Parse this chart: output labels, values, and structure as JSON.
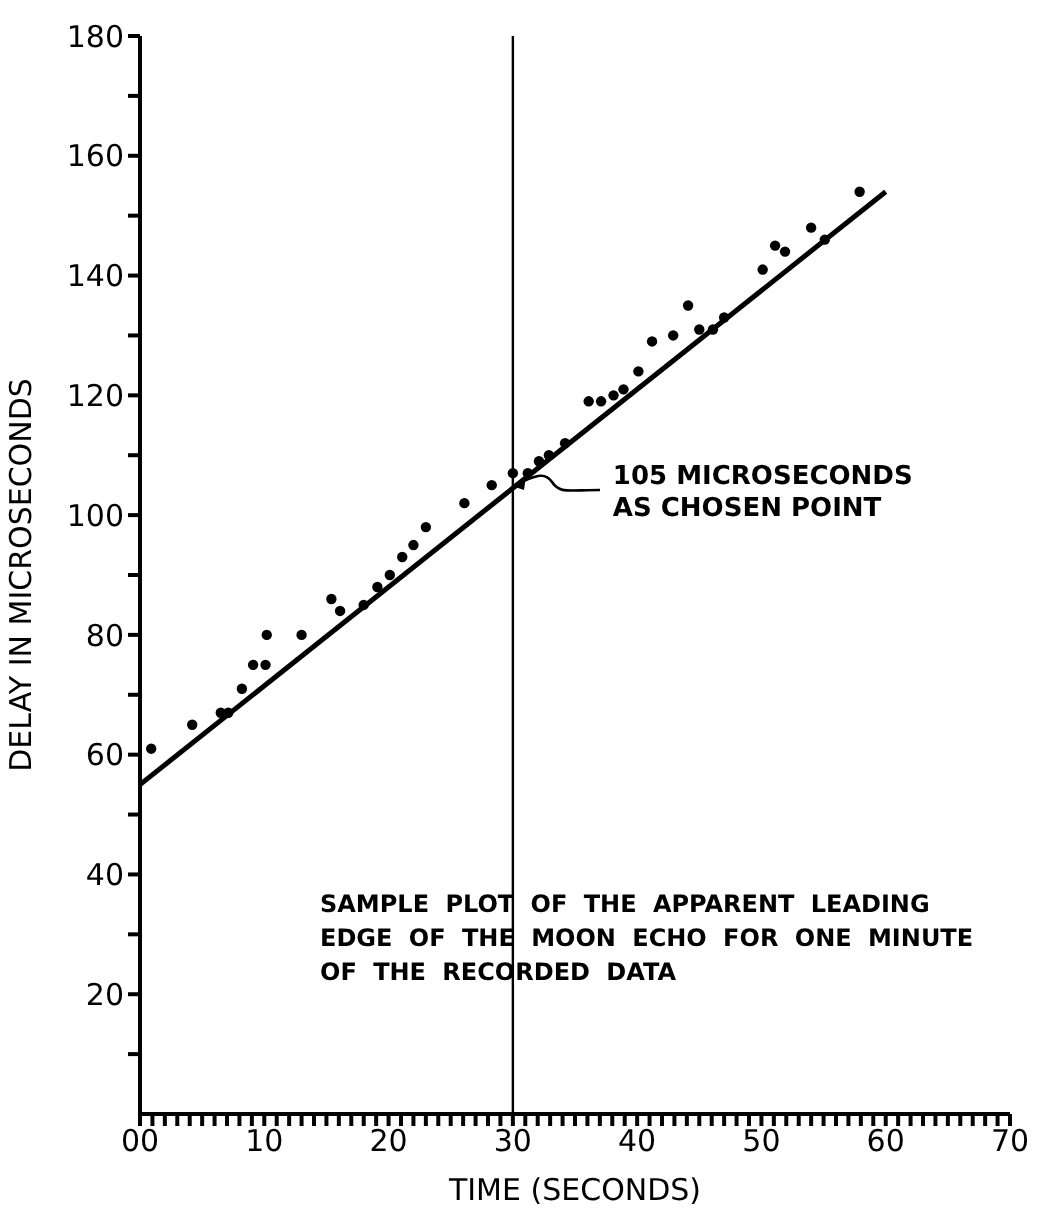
{
  "chart_data": {
    "type": "scatter",
    "xlabel": "TIME (SECONDS)",
    "ylabel": "DELAY IN MICROSECONDS",
    "xlim": [
      0,
      70
    ],
    "ylim": [
      0,
      180
    ],
    "xticks": [
      {
        "value": 0,
        "label": "00"
      },
      10,
      20,
      30,
      40,
      50,
      60,
      70,
      {
        "value": 1,
        "label": null
      },
      {
        "value": 2,
        "label": null
      },
      {
        "value": 3,
        "label": null
      },
      {
        "value": 4,
        "label": null
      },
      {
        "value": 5,
        "label": null
      },
      {
        "value": 6,
        "label": null
      },
      {
        "value": 7,
        "label": null
      },
      {
        "value": 8,
        "label": null
      },
      {
        "value": 9,
        "label": null
      },
      {
        "value": 11,
        "label": null
      },
      {
        "value": 12,
        "label": null
      },
      {
        "value": 13,
        "label": null
      },
      {
        "value": 14,
        "label": null
      },
      {
        "value": 15,
        "label": null
      },
      {
        "value": 16,
        "label": null
      },
      {
        "value": 17,
        "label": null
      },
      {
        "value": 18,
        "label": null
      },
      {
        "value": 19,
        "label": null
      },
      {
        "value": 21,
        "label": null
      },
      {
        "value": 22,
        "label": null
      },
      {
        "value": 23,
        "label": null
      },
      {
        "value": 24,
        "label": null
      },
      {
        "value": 25,
        "label": null
      },
      {
        "value": 26,
        "label": null
      },
      {
        "value": 27,
        "label": null
      },
      {
        "value": 28,
        "label": null
      },
      {
        "value": 29,
        "label": null
      },
      {
        "value": 31,
        "label": null
      },
      {
        "value": 32,
        "label": null
      },
      {
        "value": 33,
        "label": null
      },
      {
        "value": 34,
        "label": null
      },
      {
        "value": 35,
        "label": null
      },
      {
        "value": 36,
        "label": null
      },
      {
        "value": 37,
        "label": null
      },
      {
        "value": 38,
        "label": null
      },
      {
        "value": 39,
        "label": null
      },
      {
        "value": 41,
        "label": null
      },
      {
        "value": 42,
        "label": null
      },
      {
        "value": 43,
        "label": null
      },
      {
        "value": 44,
        "label": null
      },
      {
        "value": 45,
        "label": null
      },
      {
        "value": 46,
        "label": null
      },
      {
        "value": 47,
        "label": null
      },
      {
        "value": 48,
        "label": null
      },
      {
        "value": 49,
        "label": null
      },
      {
        "value": 51,
        "label": null
      },
      {
        "value": 52,
        "label": null
      },
      {
        "value": 53,
        "label": null
      },
      {
        "value": 54,
        "label": null
      },
      {
        "value": 55,
        "label": null
      },
      {
        "value": 56,
        "label": null
      },
      {
        "value": 57,
        "label": null
      },
      {
        "value": 58,
        "label": null
      },
      {
        "value": 59,
        "label": null
      },
      {
        "value": 61,
        "label": null
      },
      {
        "value": 62,
        "label": null
      },
      {
        "value": 63,
        "label": null
      },
      {
        "value": 64,
        "label": null
      },
      {
        "value": 65,
        "label": null
      },
      {
        "value": 66,
        "label": null
      },
      {
        "value": 67,
        "label": null
      },
      {
        "value": 68,
        "label": null
      },
      {
        "value": 69,
        "label": null
      }
    ],
    "yticks": [
      20,
      40,
      60,
      80,
      100,
      120,
      140,
      160,
      180,
      {
        "value": 10,
        "label": null
      },
      {
        "value": 30,
        "label": null
      },
      {
        "value": 50,
        "label": null
      },
      {
        "value": 70,
        "label": null
      },
      {
        "value": 90,
        "label": null
      },
      {
        "value": 110,
        "label": null
      },
      {
        "value": 130,
        "label": null
      },
      {
        "value": 150,
        "label": null
      },
      {
        "value": 170,
        "label": null
      }
    ],
    "marker": "circle",
    "series": [
      {
        "color": "#000000",
        "x": [
          0.9,
          4.2,
          6.5,
          7.1,
          8.2,
          9.1,
          10.1,
          10.2,
          13.0,
          15.4,
          16.1,
          18.0,
          19.1,
          20.1,
          21.1,
          22.0,
          23.0,
          26.1,
          28.3,
          30.0,
          31.2,
          32.1,
          32.9,
          34.2,
          36.1,
          37.1,
          38.1,
          38.9,
          40.1,
          41.2,
          42.9,
          44.1,
          45.0,
          46.1,
          47.0,
          50.1,
          51.1,
          51.9,
          54.0,
          55.1,
          57.9
        ],
        "values": [
          61,
          65,
          67,
          67,
          71,
          75,
          75,
          80,
          80,
          86,
          84,
          85,
          88,
          90,
          93,
          95,
          98,
          102,
          105,
          107,
          107,
          109,
          110,
          112,
          119,
          119,
          120,
          121,
          124,
          129,
          130,
          135,
          131,
          131,
          133,
          141,
          145,
          144,
          148,
          146,
          154
        ]
      },
      {
        "type": "line",
        "color": "#000000",
        "marker": "none",
        "x": [
          0,
          60
        ],
        "values": [
          55,
          154
        ]
      }
    ],
    "ref_lines": [
      {
        "axis": "x",
        "value": 30,
        "color": "#000000"
      }
    ],
    "annotations": [
      {
        "text": "105 MICROSECONDS AS CHOSEN POINT",
        "x": 30,
        "y": 105
      },
      "SAMPLE PLOT OF THE APPARENT LEADING EDGE OF THE MOON ECHO FOR ONE MINUTE OF THE RECORDED DATA"
    ]
  }
}
